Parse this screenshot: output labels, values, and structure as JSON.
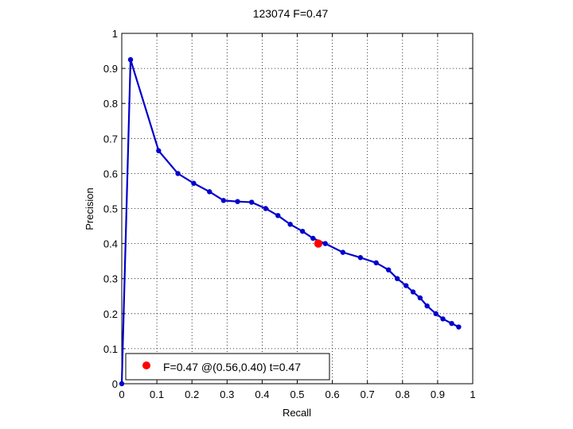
{
  "chart_data": {
    "type": "line",
    "title": "123074 F=0.47",
    "xlabel": "Recall",
    "ylabel": "Precision",
    "xlim": [
      0,
      1
    ],
    "ylim": [
      0,
      1
    ],
    "xticks": [
      "0",
      "0.1",
      "0.2",
      "0.3",
      "0.4",
      "0.5",
      "0.6",
      "0.7",
      "0.8",
      "0.9",
      "1"
    ],
    "yticks": [
      "0",
      "0.1",
      "0.2",
      "0.3",
      "0.4",
      "0.5",
      "0.6",
      "0.7",
      "0.8",
      "0.9",
      "1"
    ],
    "grid": true,
    "legend_position": "bottom-left",
    "series": [
      {
        "color": "#0000cc",
        "x": [
          0,
          0.025,
          0.105,
          0.16,
          0.205,
          0.25,
          0.29,
          0.33,
          0.37,
          0.41,
          0.445,
          0.48,
          0.515,
          0.545,
          0.58,
          0.63,
          0.68,
          0.725,
          0.76,
          0.785,
          0.81,
          0.83,
          0.85,
          0.87,
          0.895,
          0.915,
          0.94,
          0.96
        ],
        "y": [
          0,
          0.925,
          0.665,
          0.6,
          0.572,
          0.548,
          0.523,
          0.52,
          0.518,
          0.5,
          0.48,
          0.455,
          0.435,
          0.415,
          0.4,
          0.375,
          0.36,
          0.345,
          0.325,
          0.3,
          0.28,
          0.262,
          0.245,
          0.222,
          0.2,
          0.185,
          0.172,
          0.162
        ]
      }
    ],
    "highlight_point": {
      "x": 0.56,
      "y": 0.4,
      "color": "#ff0000"
    },
    "legend": {
      "label": "F=0.47 @(0.56,0.40) t=0.47",
      "marker_color": "#ff0000"
    }
  }
}
